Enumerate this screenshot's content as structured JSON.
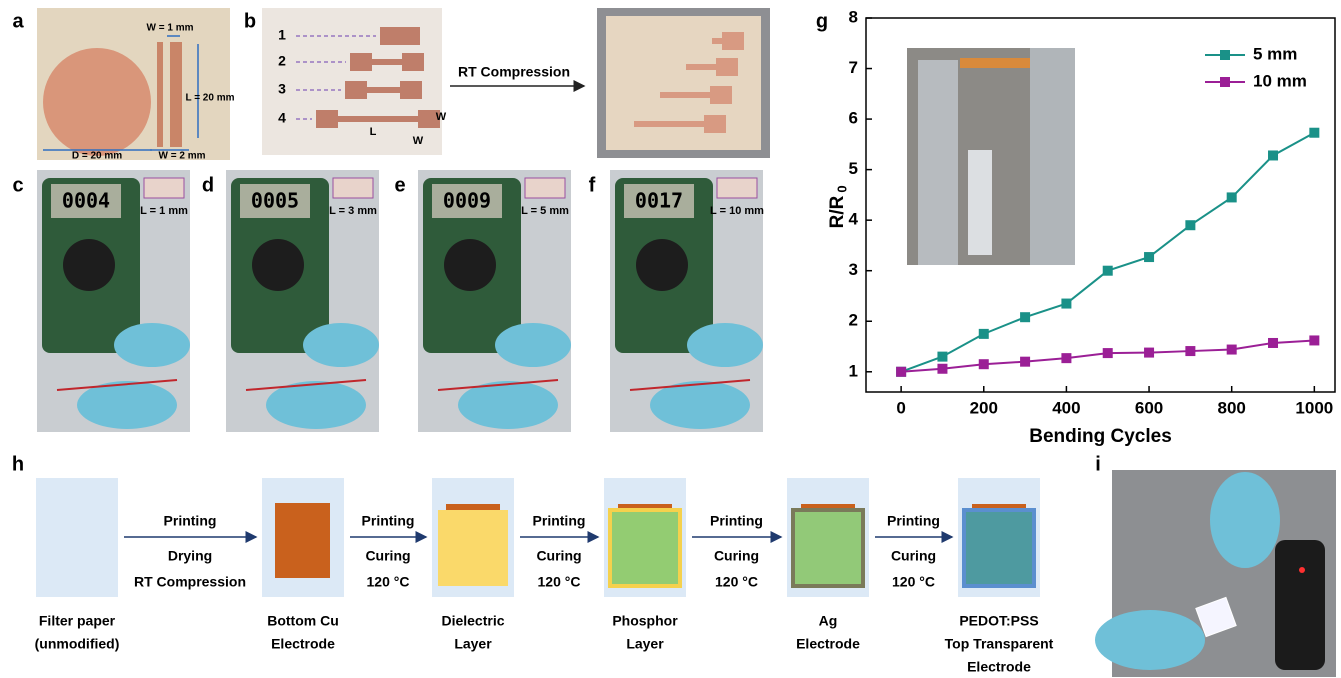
{
  "panel_labels": [
    "a",
    "b",
    "c",
    "d",
    "e",
    "f",
    "g",
    "h",
    "i"
  ],
  "panel_a": {
    "texts": [
      "W = 1 mm",
      "L = 20 mm",
      "D = 20 mm",
      "W = 2 mm"
    ]
  },
  "panel_b": {
    "sample_numbers": [
      "1",
      "2",
      "3",
      "4"
    ],
    "dimensions": [
      "L",
      "W",
      "W"
    ],
    "arrow_label": "RT Compression"
  },
  "panels_c_to_f": [
    {
      "reading": "0004",
      "label": "L = 1 mm"
    },
    {
      "reading": "0005",
      "label": "L = 3 mm"
    },
    {
      "reading": "0009",
      "label": "L = 5 mm"
    },
    {
      "reading": "0017",
      "label": "L = 10 mm"
    }
  ],
  "chart_data": {
    "type": "line",
    "xlabel": "Bending Cycles",
    "ylabel": "R/R",
    "ylabel_subscript": "0",
    "x": [
      0,
      100,
      200,
      300,
      400,
      500,
      600,
      700,
      800,
      900,
      1000
    ],
    "series": [
      {
        "name": "5 mm",
        "color": "#1a9188",
        "values": [
          1,
          1.3,
          1.75,
          2.08,
          2.35,
          3.0,
          3.27,
          3.9,
          4.45,
          5.28,
          5.73
        ]
      },
      {
        "name": "10 mm",
        "color": "#9b1f96",
        "values": [
          1,
          1.06,
          1.15,
          1.2,
          1.27,
          1.37,
          1.38,
          1.41,
          1.44,
          1.57,
          1.62
        ]
      }
    ],
    "xlim": [
      -85,
      1050
    ],
    "ylim": [
      0.6,
      8
    ],
    "xticks": [
      0,
      200,
      400,
      600,
      800,
      1000
    ],
    "yticks": [
      1,
      2,
      3,
      4,
      5,
      6,
      7,
      8
    ],
    "legend": "upper right",
    "marker": "square"
  },
  "process": {
    "steps": [
      [
        "Filter paper",
        "(unmodified)"
      ],
      [
        "Bottom Cu",
        "Electrode"
      ],
      [
        "Dielectric",
        "Layer"
      ],
      [
        "Phosphor",
        "Layer"
      ],
      [
        "Ag",
        "Electrode"
      ],
      [
        "PEDOT:PSS",
        "Top Transparent",
        "Electrode"
      ]
    ],
    "transitions": [
      [
        "Printing",
        "Drying",
        "RT Compression"
      ],
      [
        "Printing",
        "Curing",
        "120 °C"
      ],
      [
        "Printing",
        "Curing",
        "120 °C"
      ],
      [
        "Printing",
        "Curing",
        "120 °C"
      ],
      [
        "Printing",
        "Curing",
        "120 °C"
      ]
    ]
  }
}
